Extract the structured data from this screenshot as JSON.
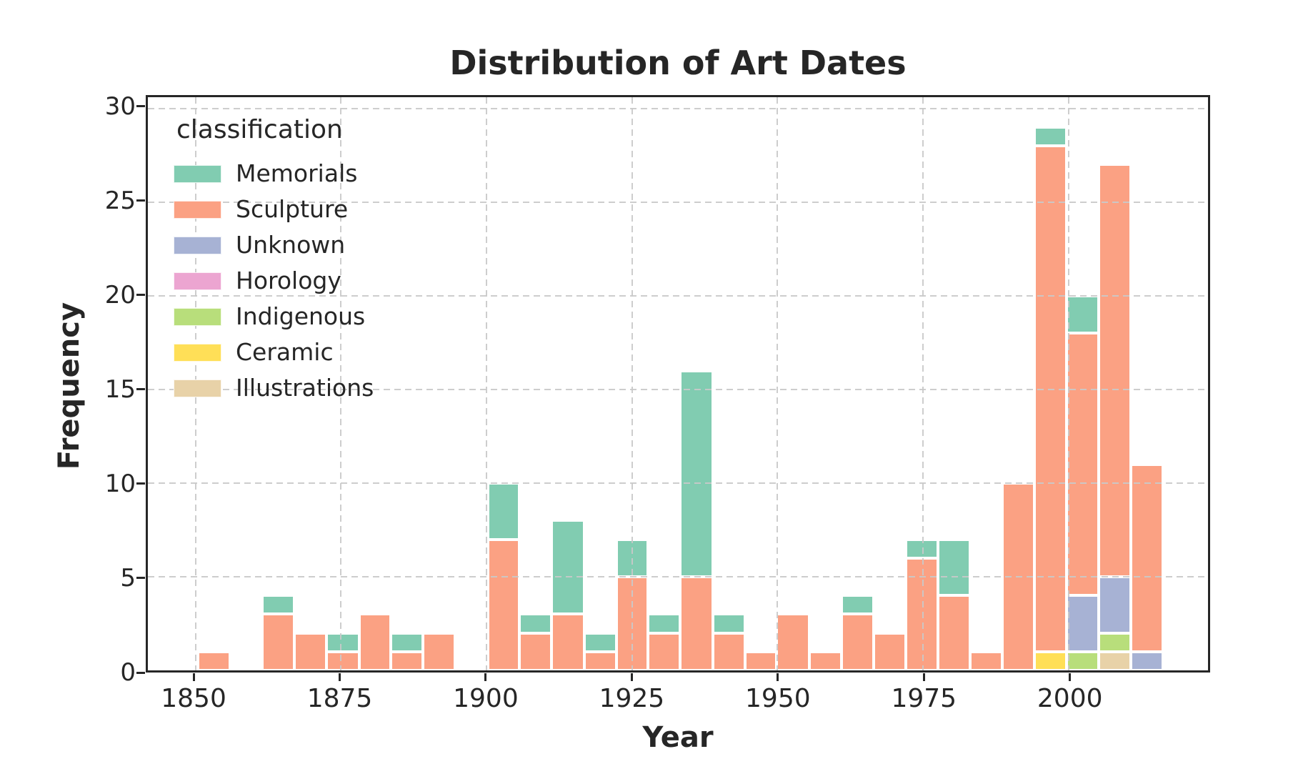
{
  "chart_data": {
    "type": "bar",
    "stacked": true,
    "title": "Distribution of Art Dates",
    "xlabel": "Year",
    "ylabel": "Frequency",
    "legend_title": "classification",
    "legend_position": "upper-left",
    "grid": "dashed-both-axes-above-bars",
    "xlim": [
      1841.8,
      2024.0
    ],
    "ylim": [
      0,
      30.6
    ],
    "yticks": [
      0,
      5,
      10,
      15,
      20,
      25,
      30
    ],
    "xticks": [
      1850,
      1875,
      1900,
      1925,
      1950,
      1975,
      2000
    ],
    "bin_width_years": 5.5,
    "stack_order_bottom_to_top": [
      "Illustrations",
      "Ceramic",
      "Indigenous",
      "Horology",
      "Unknown",
      "Sculpture",
      "Memorials"
    ],
    "categories": [
      {
        "name": "Memorials",
        "color": "#81ccb1"
      },
      {
        "name": "Sculpture",
        "color": "#fba183"
      },
      {
        "name": "Unknown",
        "color": "#a7b2d4"
      },
      {
        "name": "Horology",
        "color": "#eca5d1"
      },
      {
        "name": "Indigenous",
        "color": "#b8de7b"
      },
      {
        "name": "Ceramic",
        "color": "#ffdf57"
      },
      {
        "name": "Illustrations",
        "color": "#e8d2a8"
      }
    ],
    "bars": [
      {
        "year_start": 1850.4,
        "year_end": 1855.9,
        "total": 1,
        "segments": [
          {
            "category": "Sculpture",
            "value": 1
          }
        ]
      },
      {
        "year_start": 1855.9,
        "year_end": 1861.5,
        "total": 0,
        "segments": []
      },
      {
        "year_start": 1861.5,
        "year_end": 1867.0,
        "total": 4,
        "segments": [
          {
            "category": "Sculpture",
            "value": 3
          },
          {
            "category": "Memorials",
            "value": 1
          }
        ]
      },
      {
        "year_start": 1867.0,
        "year_end": 1872.5,
        "total": 2,
        "segments": [
          {
            "category": "Sculpture",
            "value": 2
          }
        ]
      },
      {
        "year_start": 1872.5,
        "year_end": 1878.1,
        "total": 2,
        "segments": [
          {
            "category": "Sculpture",
            "value": 1
          },
          {
            "category": "Memorials",
            "value": 1
          }
        ]
      },
      {
        "year_start": 1878.1,
        "year_end": 1883.6,
        "total": 3,
        "segments": [
          {
            "category": "Sculpture",
            "value": 3
          }
        ]
      },
      {
        "year_start": 1883.6,
        "year_end": 1889.1,
        "total": 2,
        "segments": [
          {
            "category": "Sculpture",
            "value": 1
          },
          {
            "category": "Memorials",
            "value": 1
          }
        ]
      },
      {
        "year_start": 1889.1,
        "year_end": 1894.6,
        "total": 2,
        "segments": [
          {
            "category": "Sculpture",
            "value": 2
          }
        ]
      },
      {
        "year_start": 1894.6,
        "year_end": 1900.2,
        "total": 0,
        "segments": []
      },
      {
        "year_start": 1900.2,
        "year_end": 1905.7,
        "total": 10,
        "segments": [
          {
            "category": "Sculpture",
            "value": 7
          },
          {
            "category": "Memorials",
            "value": 3
          }
        ]
      },
      {
        "year_start": 1905.7,
        "year_end": 1911.2,
        "total": 3,
        "segments": [
          {
            "category": "Sculpture",
            "value": 2
          },
          {
            "category": "Memorials",
            "value": 1
          }
        ]
      },
      {
        "year_start": 1911.2,
        "year_end": 1916.8,
        "total": 8,
        "segments": [
          {
            "category": "Sculpture",
            "value": 3
          },
          {
            "category": "Memorials",
            "value": 5
          }
        ]
      },
      {
        "year_start": 1916.8,
        "year_end": 1922.3,
        "total": 2,
        "segments": [
          {
            "category": "Sculpture",
            "value": 1
          },
          {
            "category": "Memorials",
            "value": 1
          }
        ]
      },
      {
        "year_start": 1922.3,
        "year_end": 1927.8,
        "total": 7,
        "segments": [
          {
            "category": "Sculpture",
            "value": 5
          },
          {
            "category": "Memorials",
            "value": 2
          }
        ]
      },
      {
        "year_start": 1927.8,
        "year_end": 1933.3,
        "total": 3,
        "segments": [
          {
            "category": "Sculpture",
            "value": 2
          },
          {
            "category": "Memorials",
            "value": 1
          }
        ]
      },
      {
        "year_start": 1933.3,
        "year_end": 1938.9,
        "total": 16,
        "segments": [
          {
            "category": "Sculpture",
            "value": 5
          },
          {
            "category": "Memorials",
            "value": 11
          }
        ]
      },
      {
        "year_start": 1938.9,
        "year_end": 1944.4,
        "total": 3,
        "segments": [
          {
            "category": "Sculpture",
            "value": 2
          },
          {
            "category": "Memorials",
            "value": 1
          }
        ]
      },
      {
        "year_start": 1944.4,
        "year_end": 1949.9,
        "total": 1,
        "segments": [
          {
            "category": "Sculpture",
            "value": 1
          }
        ]
      },
      {
        "year_start": 1949.9,
        "year_end": 1955.5,
        "total": 3,
        "segments": [
          {
            "category": "Sculpture",
            "value": 3
          }
        ]
      },
      {
        "year_start": 1955.5,
        "year_end": 1961.0,
        "total": 1,
        "segments": [
          {
            "category": "Sculpture",
            "value": 1
          }
        ]
      },
      {
        "year_start": 1961.0,
        "year_end": 1966.5,
        "total": 4,
        "segments": [
          {
            "category": "Sculpture",
            "value": 3
          },
          {
            "category": "Memorials",
            "value": 1
          }
        ]
      },
      {
        "year_start": 1966.5,
        "year_end": 1972.1,
        "total": 2,
        "segments": [
          {
            "category": "Sculpture",
            "value": 2
          }
        ]
      },
      {
        "year_start": 1972.1,
        "year_end": 1977.6,
        "total": 7,
        "segments": [
          {
            "category": "Sculpture",
            "value": 6
          },
          {
            "category": "Memorials",
            "value": 1
          }
        ]
      },
      {
        "year_start": 1977.6,
        "year_end": 1983.1,
        "total": 7,
        "segments": [
          {
            "category": "Sculpture",
            "value": 4
          },
          {
            "category": "Memorials",
            "value": 3
          }
        ]
      },
      {
        "year_start": 1983.1,
        "year_end": 1988.6,
        "total": 1,
        "segments": [
          {
            "category": "Sculpture",
            "value": 1
          }
        ]
      },
      {
        "year_start": 1988.6,
        "year_end": 1994.2,
        "total": 10,
        "segments": [
          {
            "category": "Sculpture",
            "value": 10
          }
        ]
      },
      {
        "year_start": 1994.2,
        "year_end": 1999.7,
        "total": 29,
        "segments": [
          {
            "category": "Ceramic",
            "value": 1
          },
          {
            "category": "Sculpture",
            "value": 27
          },
          {
            "category": "Memorials",
            "value": 1
          }
        ]
      },
      {
        "year_start": 1999.7,
        "year_end": 2005.2,
        "total": 20,
        "segments": [
          {
            "category": "Indigenous",
            "value": 1
          },
          {
            "category": "Unknown",
            "value": 3
          },
          {
            "category": "Sculpture",
            "value": 14
          },
          {
            "category": "Memorials",
            "value": 2
          }
        ]
      },
      {
        "year_start": 2005.2,
        "year_end": 2010.8,
        "total": 27,
        "segments": [
          {
            "category": "Illustrations",
            "value": 1
          },
          {
            "category": "Indigenous",
            "value": 1
          },
          {
            "category": "Unknown",
            "value": 3
          },
          {
            "category": "Sculpture",
            "value": 22
          }
        ]
      },
      {
        "year_start": 2010.8,
        "year_end": 2016.3,
        "total": 11,
        "segments": [
          {
            "category": "Unknown",
            "value": 1
          },
          {
            "category": "Sculpture",
            "value": 10
          }
        ]
      }
    ]
  }
}
